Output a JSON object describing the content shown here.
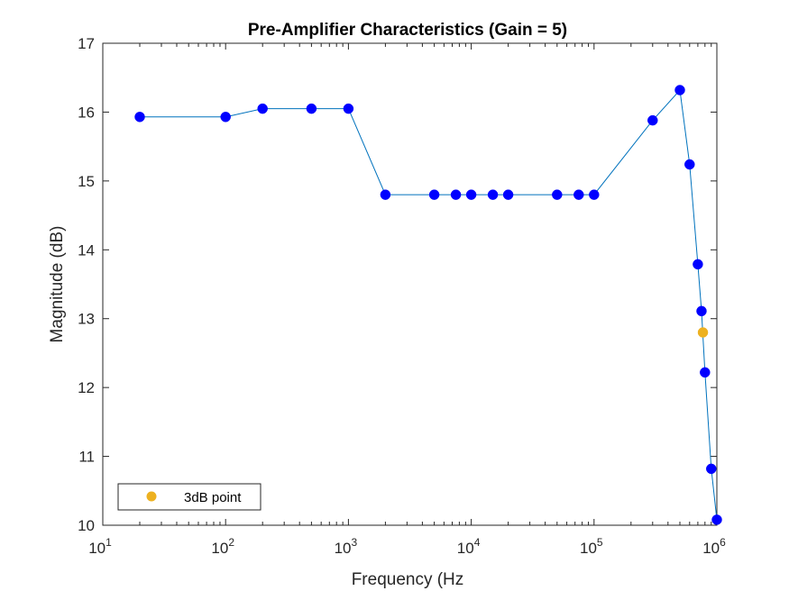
{
  "chart_data": {
    "type": "line",
    "title": "Pre-Amplifier Characteristics (Gain = 5)",
    "xlabel": "Frequency (Hz",
    "ylabel": "Magnitude (dB)",
    "x_scale": "log",
    "xlim": [
      10,
      1000000
    ],
    "ylim": [
      10,
      17
    ],
    "grid": false,
    "x_tick_bases": [
      "10",
      "10",
      "10",
      "10",
      "10",
      "10"
    ],
    "x_tick_exponents": [
      "1",
      "2",
      "3",
      "4",
      "5",
      "6"
    ],
    "y_ticks": [
      "10",
      "11",
      "12",
      "13",
      "14",
      "15",
      "16",
      "17"
    ],
    "legend_location": "bottom-left",
    "series": [
      {
        "style": "line with markers",
        "line_color": "#0072BD",
        "marker_color": "#0000FF",
        "x": [
          20,
          100,
          200,
          500,
          1000,
          2000,
          5000,
          7500,
          10000,
          15000,
          20000,
          50000,
          75000,
          100000,
          300000,
          500000,
          600000,
          700000,
          750000,
          800000,
          900000,
          1000000
        ],
        "y": [
          15.93,
          15.93,
          16.05,
          16.05,
          16.05,
          14.8,
          14.8,
          14.8,
          14.8,
          14.8,
          14.8,
          14.8,
          14.8,
          14.8,
          15.88,
          16.32,
          15.24,
          13.79,
          13.11,
          12.22,
          10.82,
          10.08
        ]
      },
      {
        "name": "3dB point",
        "style": "marker",
        "marker_color": "#EDB120",
        "x": [
          770000
        ],
        "y": [
          12.8
        ]
      }
    ]
  }
}
